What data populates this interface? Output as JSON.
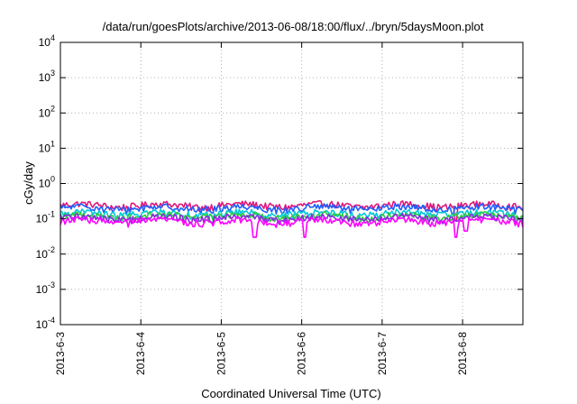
{
  "chart_data": {
    "type": "line",
    "title": "/data/run/goesPlots/archive/2013-06-08/18:00/flux/../bryn/5daysMoon.plot",
    "xlabel": "Coordinated Universal Time (UTC)",
    "ylabel": "cGy/day",
    "yscale": "log",
    "ylim": [
      0.0001,
      10000
    ],
    "xlim": [
      "2013-06-03",
      "2013-06-08 18:00"
    ],
    "grid": true,
    "legend": "none",
    "y_ticks": [
      {
        "base": "10",
        "exp": "-4"
      },
      {
        "base": "10",
        "exp": "-3"
      },
      {
        "base": "10",
        "exp": "-2"
      },
      {
        "base": "10",
        "exp": "-1"
      },
      {
        "base": "10",
        "exp": "0"
      },
      {
        "base": "10",
        "exp": "1"
      },
      {
        "base": "10",
        "exp": "2"
      },
      {
        "base": "10",
        "exp": "3"
      },
      {
        "base": "10",
        "exp": "4"
      }
    ],
    "x_ticks": [
      "2013-6-3",
      "2013-6-4",
      "2013-6-5",
      "2013-6-6",
      "2013-6-7",
      "2013-6-8"
    ],
    "series": [
      {
        "color": "#e0177a",
        "base": 0.24,
        "dips": [
          {
            "x": "2013-06-07 22:00",
            "v": 0.09
          }
        ]
      },
      {
        "color": "#1f5fff",
        "base": 0.2,
        "dips": []
      },
      {
        "color": "#00c8d8",
        "base": 0.14,
        "dips": []
      },
      {
        "color": "#2ecc40",
        "base": 0.12,
        "dips": []
      },
      {
        "color": "#8a2be2",
        "base": 0.105,
        "dips": []
      },
      {
        "color": "#ff00ff",
        "base": 0.085,
        "dips": [
          {
            "x": "2013-06-05 10:00",
            "v": 0.03
          },
          {
            "x": "2013-06-06 01:00",
            "v": 0.03
          },
          {
            "x": "2013-06-07 22:00",
            "v": 0.03
          },
          {
            "x": "2013-06-08 01:00",
            "v": 0.045
          }
        ]
      }
    ]
  }
}
